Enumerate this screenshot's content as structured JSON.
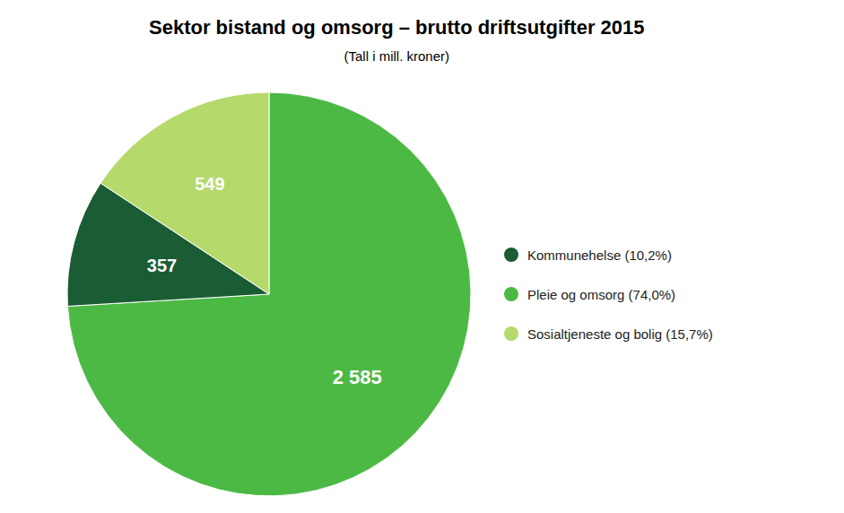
{
  "chart_data": {
    "type": "pie",
    "title": "Sektor bistand og omsorg – brutto driftsutgifter 2015",
    "subtitle": "(Tall i mill. kroner)",
    "values": [
      2585,
      357,
      549
    ],
    "value_labels": [
      "2 585",
      "357",
      "549"
    ],
    "colors": [
      "#4cb944",
      "#1a5c34",
      "#b5d96b"
    ],
    "data_labels": true,
    "legend": "right",
    "legend_entries": [
      {
        "label": "Kommunehelse (10,2%)",
        "color": "#1a5c34"
      },
      {
        "label": "Pleie og omsorg (74,0%)",
        "color": "#4cb944"
      },
      {
        "label": "Sosialtjeneste og bolig (15,7%)",
        "color": "#b5d96b"
      }
    ]
  }
}
